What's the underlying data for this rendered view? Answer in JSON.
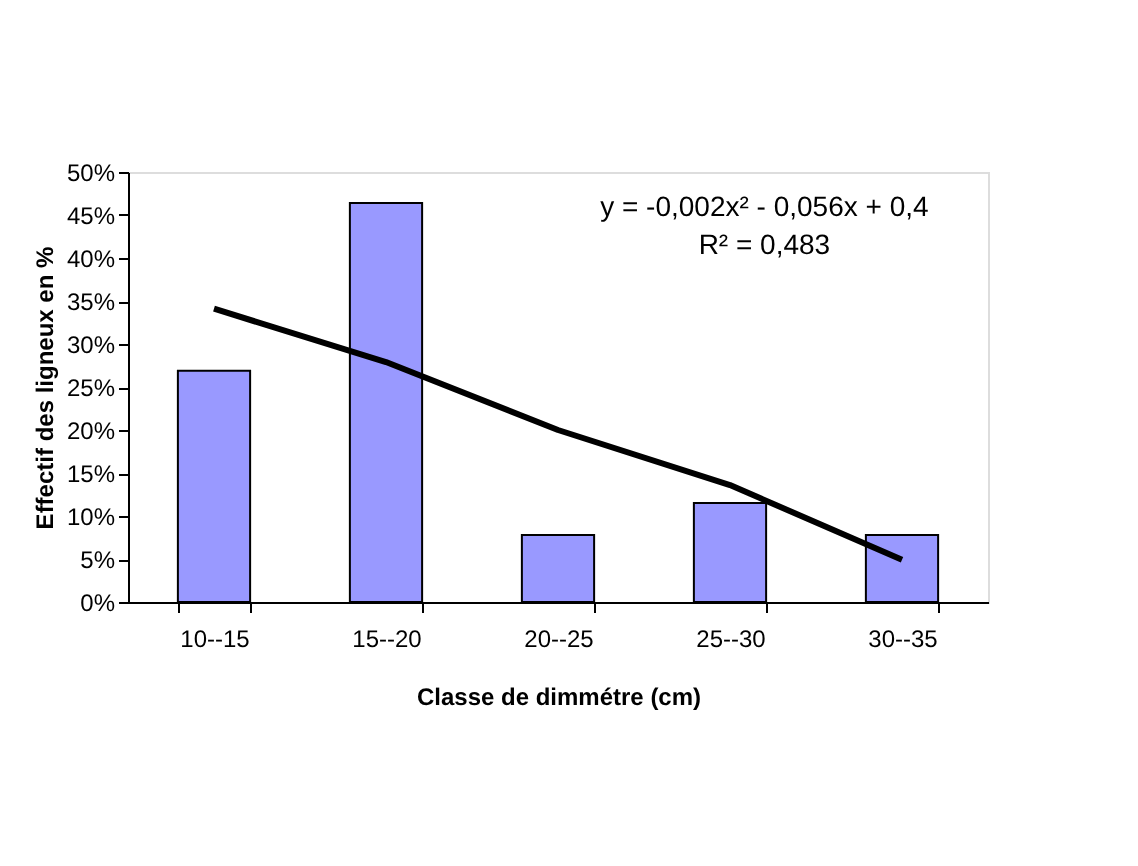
{
  "chart_data": {
    "type": "bar",
    "categories": [
      "10--15",
      "15--20",
      "20--25",
      "25--30",
      "30--35"
    ],
    "series": [
      {
        "color": "#9999ff",
        "values": [
          26.9,
          46.4,
          7.8,
          11.5,
          7.8
        ]
      },
      {
        "type": "line",
        "color": "#000000",
        "values": [
          34.1,
          27.9,
          20.0,
          13.6,
          4.9
        ]
      }
    ],
    "xlabel": "Classe de dimmétre (cm)",
    "ylabel": "Effectif des ligneux en %",
    "ylim": [
      0,
      50
    ],
    "yticks": [
      {
        "value": 0,
        "label": "0%"
      },
      {
        "value": 5,
        "label": "5%"
      },
      {
        "value": 10,
        "label": "10%"
      },
      {
        "value": 15,
        "label": "15%"
      },
      {
        "value": 20,
        "label": "20%"
      },
      {
        "value": 25,
        "label": "25%"
      },
      {
        "value": 30,
        "label": "30%"
      },
      {
        "value": 35,
        "label": "35%"
      },
      {
        "value": 40,
        "label": "40%"
      },
      {
        "value": 45,
        "label": "45%"
      },
      {
        "value": 50,
        "label": "50%"
      }
    ],
    "annotations": [
      "y = -0,002x² - 0,056x + 0,4",
      "R² = 0,483"
    ],
    "grid": false
  }
}
